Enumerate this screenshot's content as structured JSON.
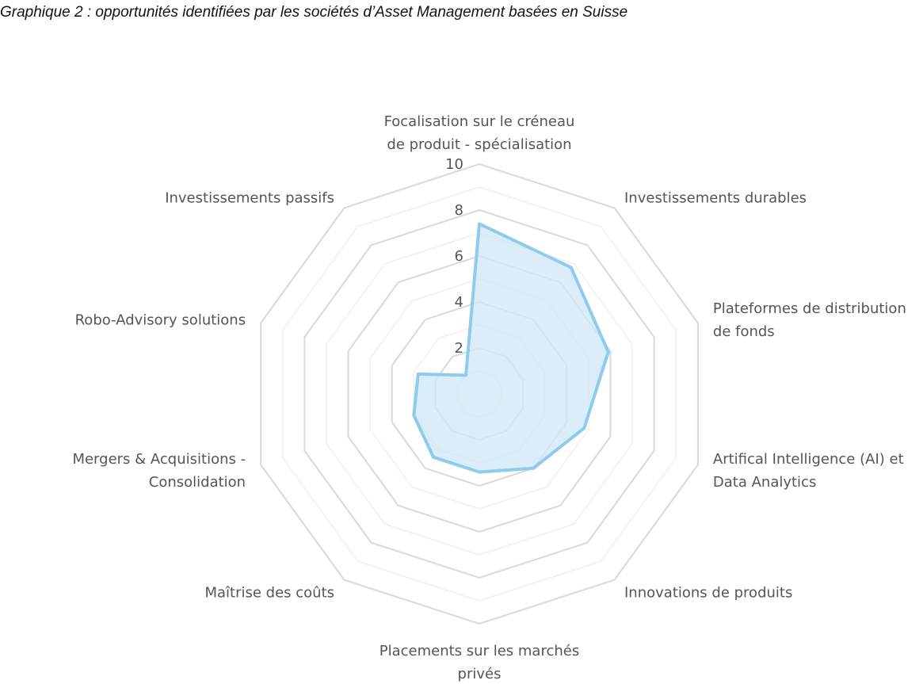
{
  "chart_data": {
    "type": "radar",
    "title": "Graphique 2 : opportunités identifiées par les sociétés d’Asset Management basées en Suisse",
    "categories": [
      [
        "Focalisation sur le créneau",
        "de produit - spécialisation"
      ],
      [
        "Investissements durables"
      ],
      [
        "Plateformes de distribution",
        "de fonds"
      ],
      [
        "Artifical Intelligence (AI) et",
        "Data Analytics"
      ],
      [
        "Innovations de produits"
      ],
      [
        "Placements sur les marchés",
        "privés"
      ],
      [
        "Maîtrise des coûts"
      ],
      [
        "Mergers & Acquisitions -",
        "Consolidation"
      ],
      [
        "Robo-Advisory solutions"
      ],
      [
        "Investissements passifs"
      ]
    ],
    "series": [
      {
        "values": [
          7.4,
          6.8,
          5.9,
          4.8,
          4.0,
          3.4,
          3.4,
          3.0,
          2.8,
          1.0
        ],
        "color": "#8ecbec",
        "fill": "#cfe7f6"
      }
    ],
    "rlim": [
      0,
      10
    ],
    "ticks": [
      2,
      4,
      6,
      8,
      10
    ],
    "tick_labels": [
      "2",
      "4",
      "6",
      "8",
      "10"
    ],
    "grid": true,
    "legend": "none"
  }
}
